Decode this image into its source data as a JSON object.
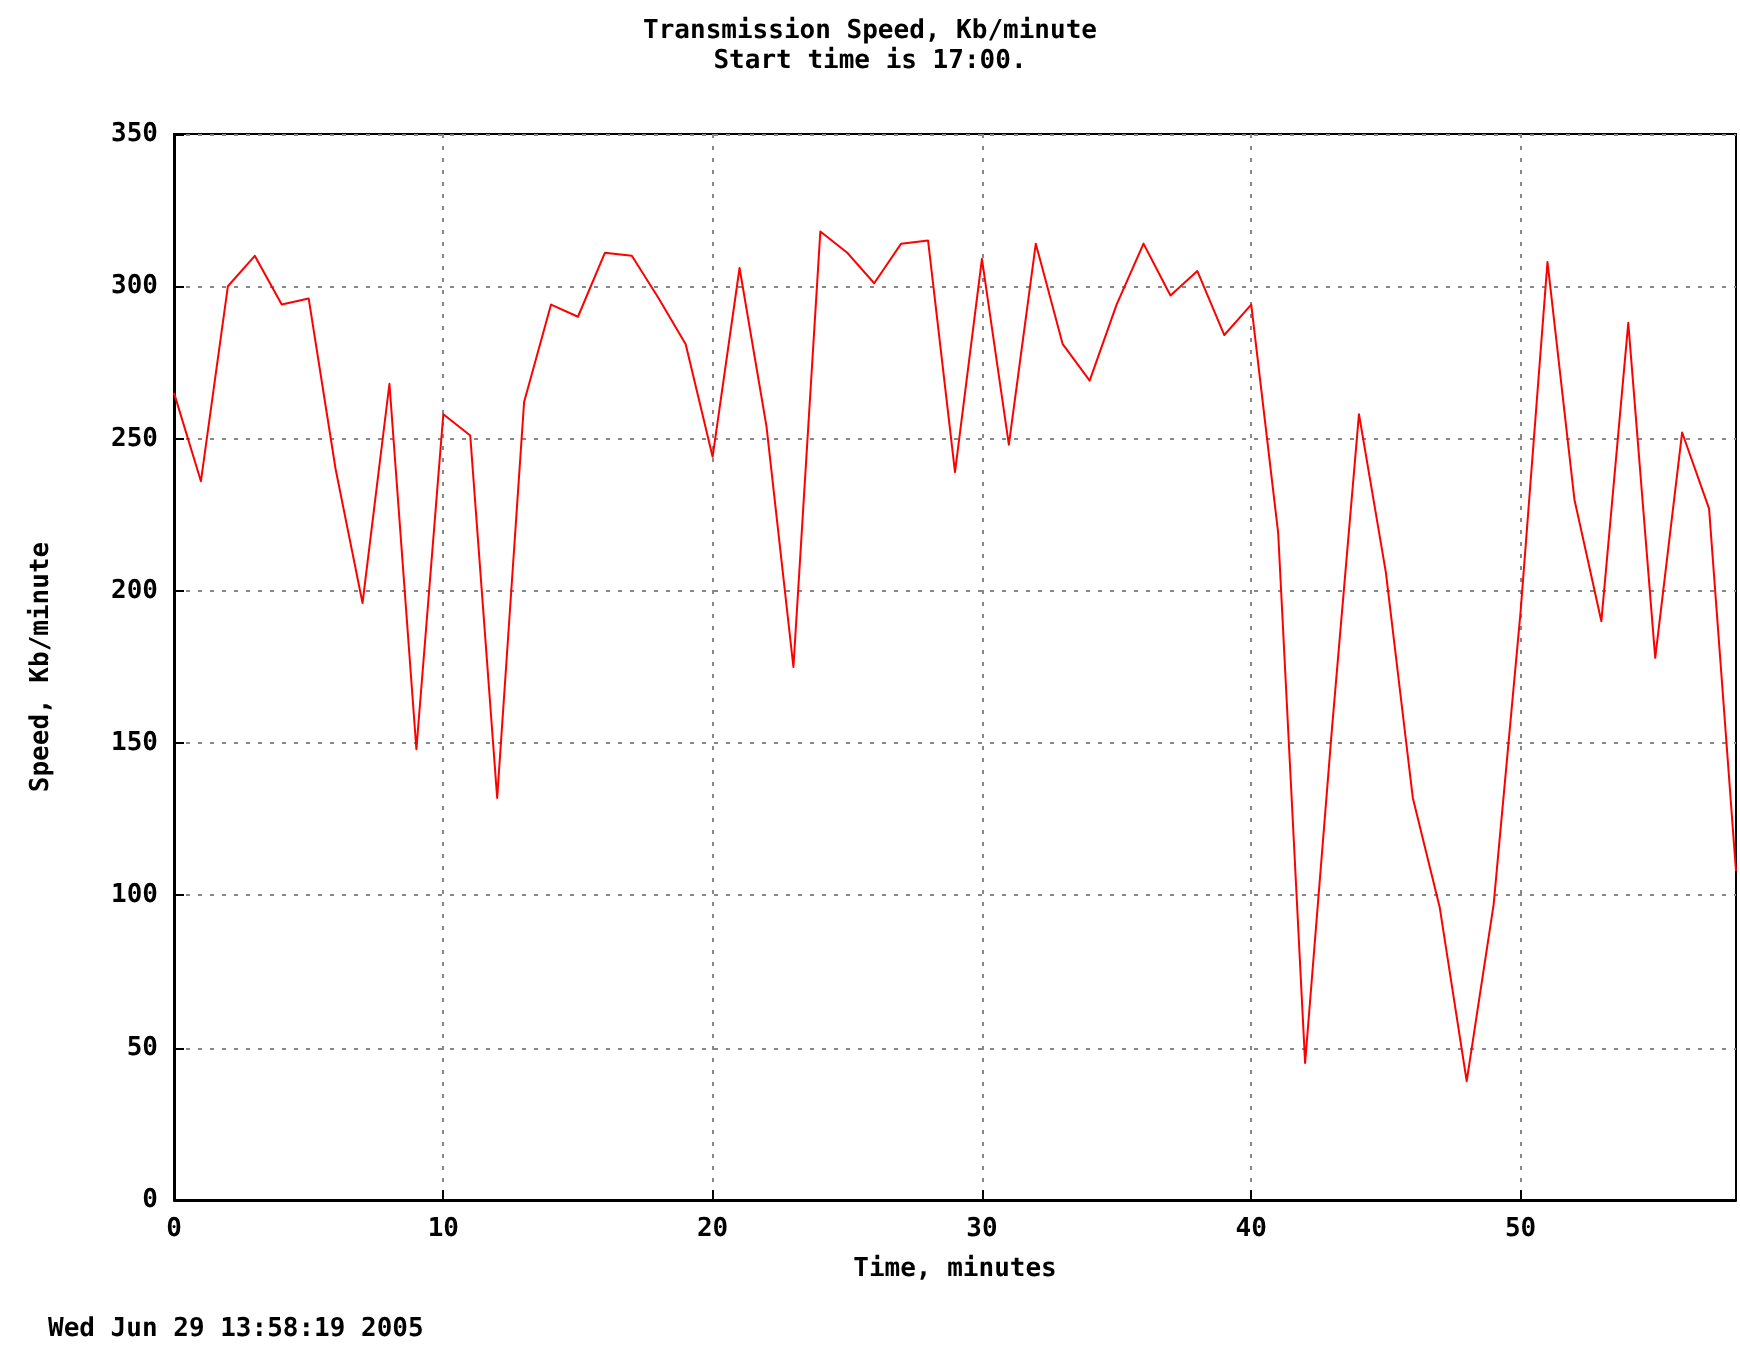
{
  "chart_data": {
    "type": "line",
    "title": "Transmission Speed, Kb/minute",
    "subtitle": "Start time is 17:00.",
    "xlabel": "Time, minutes",
    "ylabel": "Speed, Kb/minute",
    "annotations": [
      "Wed Jun 29 13:58:19 2005"
    ],
    "x": [
      0,
      1,
      2,
      3,
      4,
      5,
      6,
      7,
      8,
      9,
      10,
      11,
      12,
      13,
      14,
      15,
      16,
      17,
      18,
      19,
      20,
      21,
      22,
      23,
      24,
      25,
      26,
      27,
      28,
      29,
      30,
      31,
      32,
      33,
      34,
      35,
      36,
      37,
      38,
      39,
      40,
      41,
      42,
      43,
      44,
      45,
      46,
      47,
      48,
      49,
      50,
      51,
      52,
      53,
      54,
      55,
      56,
      57,
      58
    ],
    "series": [
      {
        "color": "#ff0000",
        "values": [
          265,
          236,
          300,
          310,
          294,
          296,
          240,
          196,
          268,
          148,
          258,
          251,
          132,
          262,
          294,
          290,
          311,
          310,
          296,
          281,
          244,
          306,
          254,
          175,
          318,
          311,
          301,
          314,
          315,
          239,
          309,
          248,
          314,
          281,
          269,
          294,
          314,
          297,
          305,
          284,
          294,
          219,
          45,
          155,
          258,
          206,
          132,
          96,
          39,
          97,
          193,
          308,
          230,
          190,
          288,
          178,
          252,
          227,
          108
        ]
      }
    ],
    "xlim": [
      0,
      58
    ],
    "xticks": [
      0,
      10,
      20,
      30,
      40,
      50
    ],
    "ylim": [
      0,
      350
    ],
    "yticks": [
      0,
      50,
      100,
      150,
      200,
      250,
      300,
      350
    ],
    "grid": true,
    "marker": "none",
    "line_style": "solid"
  }
}
